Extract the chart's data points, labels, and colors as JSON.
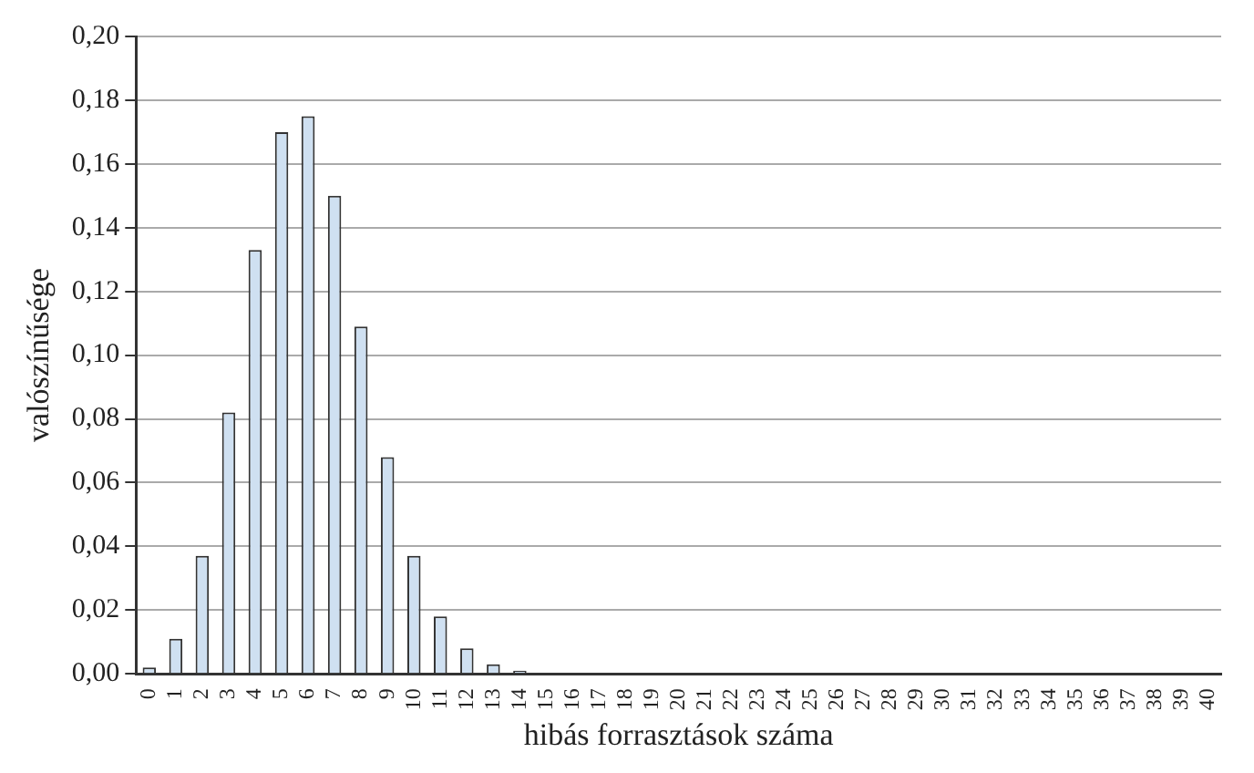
{
  "chart_data": {
    "type": "bar",
    "xlabel": "hibás forrasztások száma",
    "ylabel": "valószínűsége",
    "categories": [
      "0",
      "1",
      "2",
      "3",
      "4",
      "5",
      "6",
      "7",
      "8",
      "9",
      "10",
      "11",
      "12",
      "13",
      "14",
      "15",
      "16",
      "17",
      "18",
      "19",
      "20",
      "21",
      "22",
      "23",
      "24",
      "25",
      "26",
      "27",
      "28",
      "29",
      "30",
      "31",
      "32",
      "33",
      "34",
      "35",
      "36",
      "37",
      "38",
      "39",
      "40"
    ],
    "values": [
      0.002,
      0.011,
      0.037,
      0.082,
      0.133,
      0.17,
      0.175,
      0.15,
      0.109,
      0.068,
      0.037,
      0.018,
      0.008,
      0.003,
      0.001,
      0,
      0,
      0,
      0,
      0,
      0,
      0,
      0,
      0,
      0,
      0,
      0,
      0,
      0,
      0,
      0,
      0,
      0,
      0,
      0,
      0,
      0,
      0,
      0,
      0,
      0
    ],
    "color": "#cfe0f1",
    "ylim": [
      0,
      0.2
    ],
    "yticks": [
      {
        "value": 0,
        "label": "0,00"
      },
      {
        "value": 0.02,
        "label": "0,02"
      },
      {
        "value": 0.04,
        "label": "0,04"
      },
      {
        "value": 0.06,
        "label": "0,06"
      },
      {
        "value": 0.08,
        "label": "0,08"
      },
      {
        "value": 0.1,
        "label": "0,10"
      },
      {
        "value": 0.12,
        "label": "0,12"
      },
      {
        "value": 0.14,
        "label": "0,14"
      },
      {
        "value": 0.16,
        "label": "0,16"
      },
      {
        "value": 0.18,
        "label": "0,18"
      },
      {
        "value": 0.2,
        "label": "0,20"
      }
    ],
    "grid": "y",
    "legend": false
  }
}
